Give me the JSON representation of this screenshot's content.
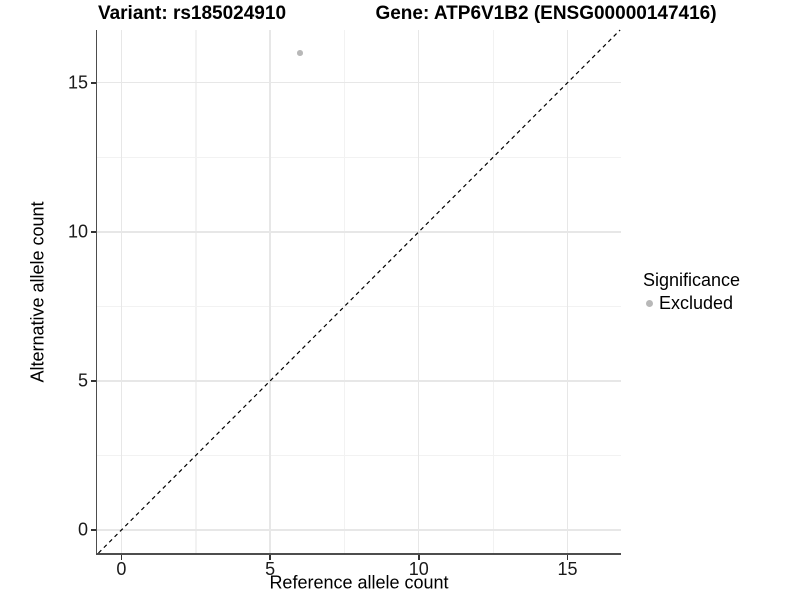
{
  "chart_data": {
    "type": "scatter",
    "title_left": "Variant: rs185024910",
    "title_right": "Gene: ATP6V1B2 (ENSG00000147416)",
    "xlabel": "Reference allele count",
    "ylabel": "Alternative allele count",
    "xlim": [
      -0.82,
      16.8
    ],
    "ylim": [
      -0.77,
      16.77
    ],
    "x_major_ticks": [
      0,
      5,
      10,
      15
    ],
    "y_major_ticks": [
      0,
      5,
      10,
      15
    ],
    "x_tick_labels": [
      "0",
      "5",
      "10",
      "15"
    ],
    "y_tick_labels": [
      "0",
      "5",
      "10",
      "15"
    ],
    "x_minor_gridlines": [
      2.5,
      7.5,
      12.5
    ],
    "y_minor_gridlines": [
      2.5,
      7.5,
      12.5
    ],
    "grid": "major+minor on white panel",
    "points": [
      {
        "x": 6,
        "y": 16,
        "series": "Excluded"
      }
    ],
    "identity_line": {
      "equation": "y = x",
      "style": "dashed",
      "color": "#000000"
    },
    "legend": {
      "position": "right",
      "title": "Significance",
      "entries": [
        {
          "label": "Excluded",
          "color": "#b8b8b8",
          "marker": "circle"
        }
      ]
    },
    "colors": {
      "point": "#b8b8b8",
      "grid_major": "#e7e7e7",
      "grid_minor": "#f2f2f2",
      "axis_line": "#4d4d4d",
      "tick_mark": "#333333",
      "text": "#000000"
    }
  }
}
